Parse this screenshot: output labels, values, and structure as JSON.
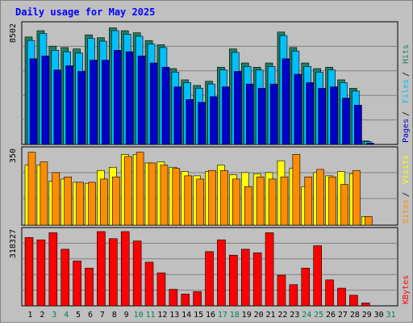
{
  "chart_data": {
    "type": "bar",
    "title": "Daily usage for May 2025",
    "days": [
      "1",
      "2",
      "3",
      "4",
      "5",
      "6",
      "7",
      "8",
      "9",
      "10",
      "11",
      "12",
      "13",
      "14",
      "15",
      "16",
      "17",
      "18",
      "19",
      "20",
      "21",
      "22",
      "23",
      "24",
      "25",
      "26",
      "27",
      "28",
      "29",
      "30",
      "31"
    ],
    "weekend_days": [
      "3",
      "4",
      "10",
      "11",
      "17",
      "18",
      "24",
      "25",
      "31"
    ],
    "panels": [
      {
        "id": "hits-files-pages",
        "axis_max_label": "8502",
        "ylim": [
          0,
          8502
        ],
        "series": [
          {
            "name": "Hits",
            "color": "#1f7f63",
            "values": [
              7650,
              8100,
              7000,
              6900,
              6800,
              7800,
              7600,
              8300,
              8100,
              7950,
              7400,
              7100,
              5400,
              4600,
              4200,
              4500,
              5500,
              6800,
              5800,
              5500,
              5800,
              8000,
              6900,
              5800,
              5400,
              5500,
              4600,
              4000,
              250,
              null,
              null
            ]
          },
          {
            "name": "Files",
            "color": "#00bfff",
            "values": [
              7400,
              7900,
              6700,
              6600,
              6500,
              7550,
              7350,
              8100,
              7850,
              7700,
              7150,
              6900,
              5150,
              4400,
              4000,
              4300,
              5300,
              6550,
              5550,
              5300,
              5550,
              7750,
              6650,
              5550,
              5150,
              5300,
              4400,
              3800,
              200,
              null,
              null
            ]
          },
          {
            "name": "Pages",
            "color": "#0000cc",
            "values": [
              6100,
              6300,
              5300,
              5600,
              5200,
              6000,
              6000,
              6700,
              6600,
              6300,
              5800,
              5500,
              4100,
              3200,
              3000,
              3400,
              4100,
              5200,
              4300,
              4000,
              4300,
              6100,
              5000,
              4400,
              4000,
              4100,
              3300,
              2800,
              100,
              null,
              null
            ]
          }
        ],
        "legend": [
          "Pages",
          "Files",
          "Hits"
        ]
      },
      {
        "id": "visits-sites",
        "axis_max_label": "350",
        "ylim": [
          0,
          350
        ],
        "series": [
          {
            "name": "Visits",
            "color": "#ffff00",
            "values": [
              280,
              280,
              205,
              215,
              200,
              195,
              255,
              270,
              330,
              330,
              290,
              295,
              270,
              250,
              230,
              250,
              280,
              235,
              245,
              240,
              245,
              300,
              265,
              180,
              245,
              230,
              250,
              240,
              40,
              null,
              null
            ]
          },
          {
            "name": "Sites",
            "color": "#ff8c00",
            "values": [
              340,
              295,
              245,
              225,
              200,
              200,
              215,
              225,
              320,
              340,
              290,
              280,
              265,
              230,
              215,
              255,
              255,
              215,
              180,
              225,
              215,
              225,
              330,
              225,
              260,
              225,
              190,
              255,
              40,
              null,
              null
            ]
          }
        ],
        "legend": [
          "Sites",
          "Visits"
        ]
      },
      {
        "id": "kbytes",
        "axis_max_label": "318327",
        "ylim": [
          0,
          318327
        ],
        "series": [
          {
            "name": "KBytes",
            "color": "#ff0000",
            "values": [
              290000,
              280000,
              310000,
              240000,
              190000,
              160000,
              315000,
              285000,
              315000,
              275000,
              185000,
              140000,
              70000,
              50000,
              60000,
              230000,
              280000,
              215000,
              240000,
              225000,
              310000,
              130000,
              90000,
              160000,
              255000,
              110000,
              75000,
              45000,
              12000,
              null,
              null
            ]
          }
        ],
        "legend": [
          "KBytes"
        ]
      }
    ]
  },
  "colors": {
    "background": "#c0c0c0",
    "title": "#0000ff",
    "weekday_label": "#000000",
    "weekend_label": "#00805c"
  }
}
